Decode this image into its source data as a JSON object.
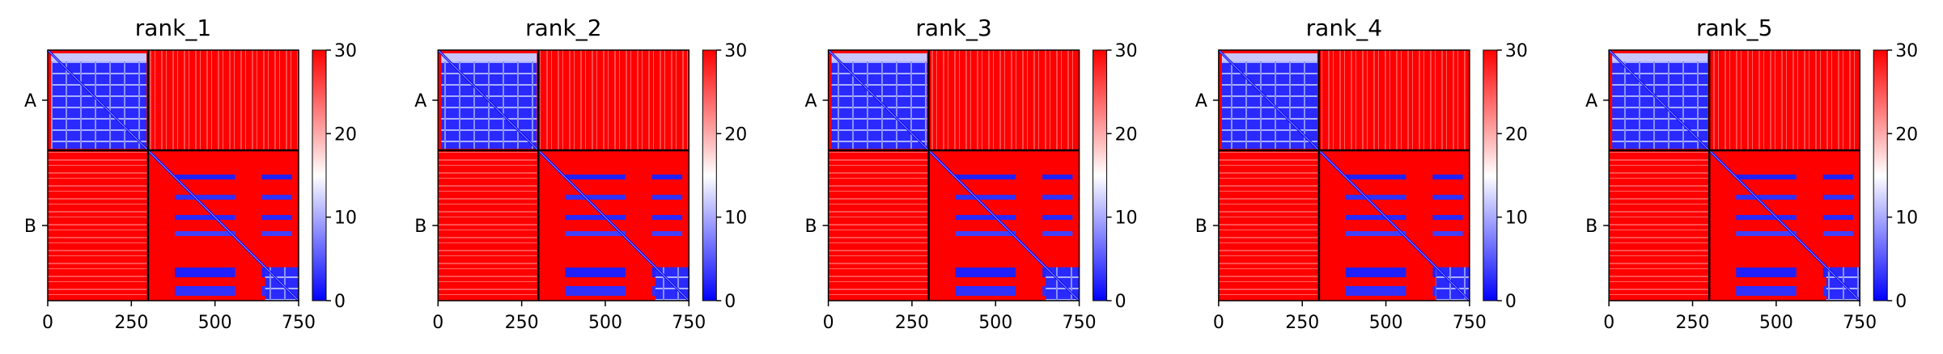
{
  "chart_data": {
    "type": "heatmap",
    "description_colormap": "bwr",
    "colors": {
      "low": "#0000ff",
      "mid": "#ffffff",
      "high": "#ff0000",
      "frame": "#000000"
    },
    "chain_boundary": 300,
    "length": 750,
    "chain_labels": [
      "A",
      "B"
    ],
    "x_ticks": [
      0,
      250,
      500,
      750
    ],
    "x_tick_labels": [
      "0",
      "250",
      "500",
      "750"
    ],
    "colorbar": {
      "min": 0,
      "max": 30,
      "ticks": [
        0,
        10,
        20,
        30
      ],
      "tick_labels": [
        "0",
        "10",
        "20",
        "30"
      ]
    },
    "panels": [
      {
        "title": "rank_1"
      },
      {
        "title": "rank_2"
      },
      {
        "title": "rank_3"
      },
      {
        "title": "rank_4"
      },
      {
        "title": "rank_5"
      }
    ]
  }
}
